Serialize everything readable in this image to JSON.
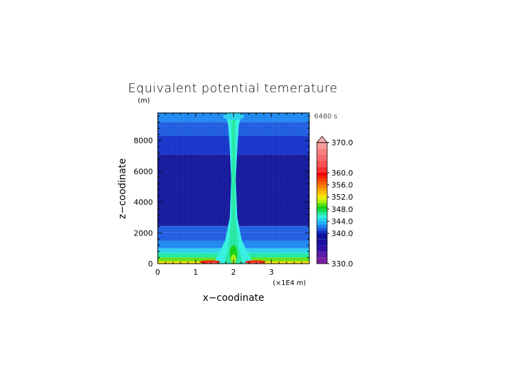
{
  "chart_data": {
    "type": "heatmap",
    "title": "Equivalent potential temerature",
    "xlabel": "x−coodinate",
    "ylabel": "z−coodinate",
    "y_unit": "(m)",
    "x_unit": "(×1E4 m)",
    "time_label": "6480 s",
    "xlim": [
      0,
      4
    ],
    "ylim": [
      0,
      9800
    ],
    "x_ticks": [
      0,
      1,
      2,
      3
    ],
    "x_tick_labels": [
      "0",
      "1",
      "2",
      "3"
    ],
    "y_ticks": [
      0,
      2000,
      4000,
      6000,
      8000
    ],
    "y_tick_labels": [
      "0",
      "2000",
      "4000",
      "6000",
      "8000"
    ],
    "grid": false,
    "colorbar": {
      "min": 330,
      "max": 370,
      "labels": [
        {
          "value": 370,
          "text": "370.0"
        },
        {
          "value": 360,
          "text": "360.0"
        },
        {
          "value": 356,
          "text": "356.0"
        },
        {
          "value": 352,
          "text": "352.0"
        },
        {
          "value": 348,
          "text": "348.0"
        },
        {
          "value": 344,
          "text": "344.0"
        },
        {
          "value": 340,
          "text": "340.0"
        },
        {
          "value": 330,
          "text": "330.0"
        }
      ],
      "levels": [
        {
          "from": 330,
          "to": 332,
          "color": "#7a1fa0"
        },
        {
          "from": 332,
          "to": 334,
          "color": "#5a19a8"
        },
        {
          "from": 334,
          "to": 336,
          "color": "#3010a8"
        },
        {
          "from": 336,
          "to": 338,
          "color": "#1a10a0"
        },
        {
          "from": 338,
          "to": 340,
          "color": "#10149a"
        },
        {
          "from": 340,
          "to": 341,
          "color": "#1030c8"
        },
        {
          "from": 341,
          "to": 342,
          "color": "#1a5ae0"
        },
        {
          "from": 342,
          "to": 343,
          "color": "#1a86f0"
        },
        {
          "from": 343,
          "to": 344,
          "color": "#20b0f8"
        },
        {
          "from": 344,
          "to": 345,
          "color": "#28d0f0"
        },
        {
          "from": 345,
          "to": 346,
          "color": "#30f0e0"
        },
        {
          "from": 346,
          "to": 347,
          "color": "#20e8a0"
        },
        {
          "from": 347,
          "to": 348,
          "color": "#10e050"
        },
        {
          "from": 348,
          "to": 349,
          "color": "#10d010"
        },
        {
          "from": 349,
          "to": 350,
          "color": "#60e010"
        },
        {
          "from": 350,
          "to": 351,
          "color": "#a8f010"
        },
        {
          "from": 351,
          "to": 352,
          "color": "#e0f000"
        },
        {
          "from": 352,
          "to": 353,
          "color": "#f8e000"
        },
        {
          "from": 353,
          "to": 354,
          "color": "#f8c000"
        },
        {
          "from": 354,
          "to": 355,
          "color": "#f8a000"
        },
        {
          "from": 355,
          "to": 356,
          "color": "#f88000"
        },
        {
          "from": 356,
          "to": 357,
          "color": "#f86000"
        },
        {
          "from": 357,
          "to": 358,
          "color": "#f84000"
        },
        {
          "from": 358,
          "to": 359,
          "color": "#f82000"
        },
        {
          "from": 359,
          "to": 360,
          "color": "#f00000"
        },
        {
          "from": 360,
          "to": 362,
          "color": "#f83030"
        },
        {
          "from": 362,
          "to": 364,
          "color": "#f85050"
        },
        {
          "from": 364,
          "to": 366,
          "color": "#f86a6a"
        },
        {
          "from": 366,
          "to": 368,
          "color": "#f88080"
        },
        {
          "from": 368,
          "to": 370,
          "color": "#f89898"
        }
      ],
      "over_color": "#f8b0b0"
    },
    "bands": [
      {
        "z0": 0,
        "z1": 150,
        "value": 352
      },
      {
        "z0": 150,
        "z1": 400,
        "value": 349
      },
      {
        "z0": 400,
        "z1": 700,
        "value": 346
      },
      {
        "z0": 700,
        "z1": 1000,
        "value": 344
      },
      {
        "z0": 1000,
        "z1": 1500,
        "value": 342.5
      },
      {
        "z0": 1500,
        "z1": 2050,
        "value": 341.5
      },
      {
        "z0": 2050,
        "z1": 2450,
        "value": 341
      },
      {
        "z0": 2450,
        "z1": 7100,
        "value": 339
      },
      {
        "z0": 7100,
        "z1": 8300,
        "value": 340.5
      },
      {
        "z0": 8300,
        "z1": 9200,
        "value": 341.5
      },
      {
        "z0": 9200,
        "z1": 9800,
        "value": 342.5
      }
    ],
    "features": [
      {
        "x0": 1.72,
        "x1": 2.28,
        "z0": 9350,
        "z1": 9800,
        "value": 344.5
      },
      {
        "x0": 1.1,
        "x1": 1.65,
        "z0": 0,
        "z1": 220,
        "value": 358
      },
      {
        "x0": 2.3,
        "x1": 2.85,
        "z0": 0,
        "z1": 220,
        "value": 358
      },
      {
        "x0": 1.3,
        "x1": 1.55,
        "z0": 0,
        "z1": 120,
        "value": 362
      },
      {
        "x0": 2.45,
        "x1": 2.7,
        "z0": 0,
        "z1": 120,
        "value": 362
      },
      {
        "x0": 1.9,
        "x1": 2.1,
        "z0": 0,
        "z1": 1200,
        "value": 348
      },
      {
        "x0": 1.93,
        "x1": 2.07,
        "z0": 0,
        "z1": 600,
        "value": 350
      }
    ],
    "plume": [
      {
        "z": 0,
        "half_width": 0.55,
        "value": 345
      },
      {
        "z": 600,
        "half_width": 0.4,
        "value": 345
      },
      {
        "z": 1500,
        "half_width": 0.22,
        "value": 345
      },
      {
        "z": 3000,
        "half_width": 0.1,
        "value": 345
      },
      {
        "z": 5500,
        "half_width": 0.06,
        "value": 345
      },
      {
        "z": 7500,
        "half_width": 0.1,
        "value": 345
      },
      {
        "z": 9000,
        "half_width": 0.14,
        "value": 345
      },
      {
        "z": 9800,
        "half_width": 0.22,
        "value": 345
      }
    ],
    "plume_core": [
      {
        "z": 0,
        "half_width": 0.25,
        "value": 346
      },
      {
        "z": 1000,
        "half_width": 0.14,
        "value": 346
      },
      {
        "z": 3000,
        "half_width": 0.05,
        "value": 346
      },
      {
        "z": 7000,
        "half_width": 0.04,
        "value": 346
      },
      {
        "z": 9800,
        "half_width": 0.06,
        "value": 346
      }
    ]
  }
}
